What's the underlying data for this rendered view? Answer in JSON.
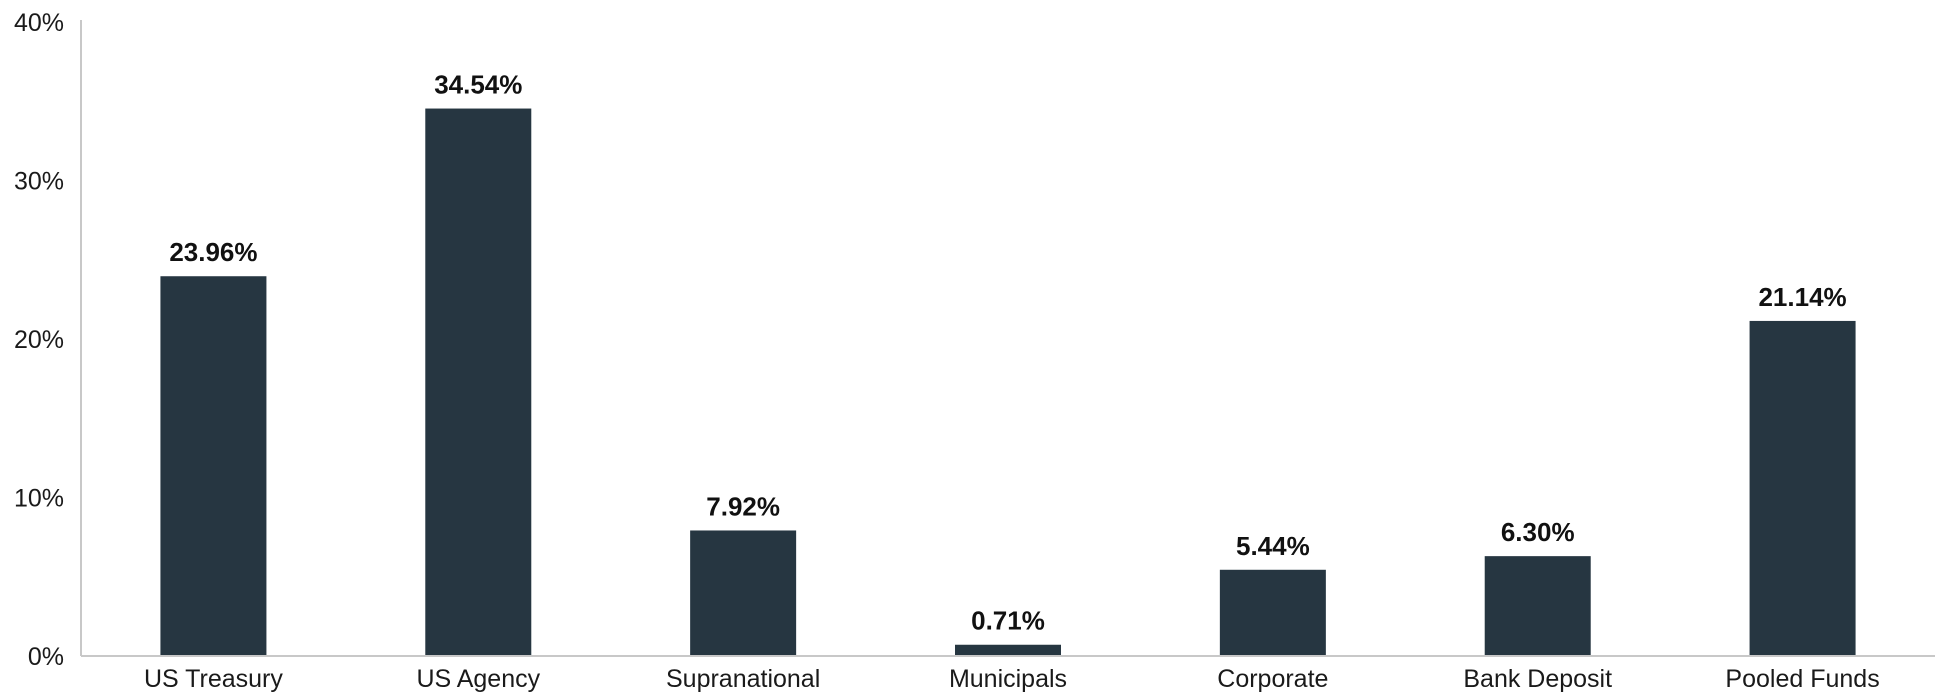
{
  "chart_data": {
    "type": "bar",
    "title": "",
    "xlabel": "",
    "ylabel": "",
    "categories": [
      "US Treasury",
      "US Agency",
      "Supranational",
      "Municipals",
      "Corporate",
      "Bank Deposit",
      "Pooled Funds"
    ],
    "values": [
      23.96,
      34.54,
      7.92,
      0.71,
      5.44,
      6.3,
      21.14
    ],
    "data_labels": [
      "23.96%",
      "34.54%",
      "7.92%",
      "0.71%",
      "5.44%",
      "6.30%",
      "21.14%"
    ],
    "y_ticks": [
      0,
      10,
      20,
      30,
      40
    ],
    "y_tick_labels": [
      "0%",
      "10%",
      "20%",
      "30%",
      "40%"
    ],
    "ylim": [
      0,
      40
    ],
    "grid": false,
    "legend": "none",
    "colors": {
      "bar": "#263641",
      "axis": "#c8c8c8"
    }
  }
}
